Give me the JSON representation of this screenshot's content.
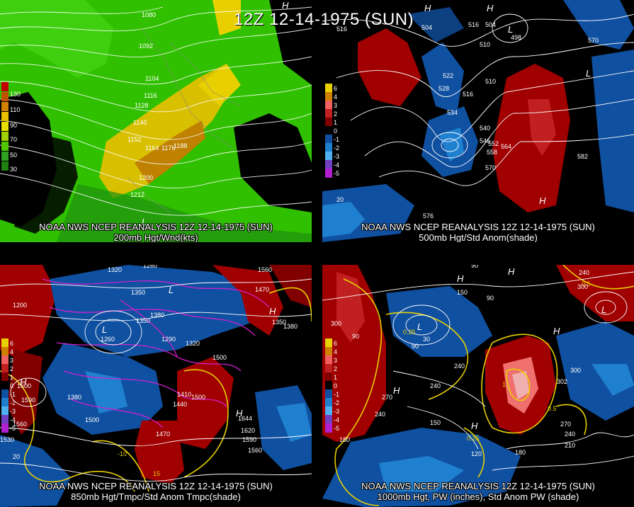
{
  "title": "12Z 12-14-1975 (SUN)",
  "panels": [
    {
      "caption1": "NOAA NWS NCEP REANALYSIS 12Z 12-14-1975 (SUN)",
      "caption2": "200mb Hgt/Wnd(kts)",
      "legend": [
        "130",
        "110",
        "90",
        "70",
        "50",
        "30"
      ],
      "legend_colors": [
        "#c00000",
        "#d08000",
        "#e8d000",
        "#50c800",
        "#30a020",
        "#208010"
      ],
      "contour_labels": [
        "1080",
        "1092",
        "1104",
        "1116",
        "1128",
        "1140",
        "1152",
        "1164",
        "1176",
        "1188",
        "1200",
        "1212"
      ],
      "highs_lows": [
        "H",
        "L"
      ]
    },
    {
      "caption1": "NOAA NWS NCEP REANALYSIS 12Z 12-14-1975 (SUN)",
      "caption2": "500mb Hgt/Std Anom(shade)",
      "legend": [
        "6",
        "4",
        "3",
        "2",
        "1",
        "0",
        "-1",
        "-2",
        "-3",
        "-4",
        "-5"
      ],
      "legend_colors": [
        "#e8d000",
        "#d08000",
        "#f06060",
        "#c02020",
        "#800000",
        "#000000",
        "#1050a0",
        "#2080d0",
        "#50b0f0",
        "#7040c0",
        "#b020d0"
      ],
      "contour_labels": [
        "516",
        "504",
        "516",
        "504",
        "498",
        "510",
        "522",
        "528",
        "516",
        "534",
        "510",
        "540",
        "546",
        "552",
        "558",
        "564",
        "570",
        "582",
        "570",
        "576",
        "20"
      ],
      "highs_lows": [
        "H",
        "H",
        "L",
        "L",
        "H"
      ]
    },
    {
      "caption1": "NOAA NWS NCEP REANALYSIS 12Z 12-14-1975 (SUN)",
      "caption2": "850mb Hgt/Tmpc/Std Anom Tmpc(shade)",
      "legend": [
        "6",
        "4",
        "3",
        "2",
        "1",
        "0",
        "-1",
        "-2",
        "-3",
        "-4",
        "-5"
      ],
      "legend_colors": [
        "#e8d000",
        "#d08000",
        "#f06060",
        "#c02020",
        "#800000",
        "#000000",
        "#1050a0",
        "#2080d0",
        "#50b0f0",
        "#7040c0",
        "#b020d0"
      ],
      "contour_labels": [
        "1320",
        "1260",
        "1350",
        "1380",
        "1260",
        "1320",
        "1290",
        "1350",
        "1380",
        "1320",
        "1500",
        "1410",
        "1440",
        "1470",
        "1500",
        "1530",
        "1560",
        "1590",
        "1620",
        "1560",
        "1590",
        "1560",
        "1470",
        "1380",
        "1350",
        "1560",
        "1530",
        "20",
        "-10",
        "15",
        "1200",
        "1600",
        "1644"
      ],
      "highs_lows": [
        "H",
        "L",
        "L",
        "H",
        "H"
      ]
    },
    {
      "caption1": "NOAA NWS NCEP REANALYSIS 12Z 12-14-1975 (SUN)",
      "caption2": "1000mb Hgt, PW (inches), Std Anom PW (shade)",
      "legend": [
        "6",
        "4",
        "3",
        "2",
        "1",
        "0",
        "-1",
        "-2",
        "-3",
        "-4",
        "-5"
      ],
      "legend_colors": [
        "#e8d000",
        "#d08000",
        "#f06060",
        "#c02020",
        "#800000",
        "#000000",
        "#1050a0",
        "#2080d0",
        "#50b0f0",
        "#7040c0",
        "#b020d0"
      ],
      "contour_labels": [
        "90",
        "150",
        "90",
        "240",
        "300",
        "90",
        "0.25",
        "90",
        "30",
        "270",
        "240",
        "150",
        "120",
        "240",
        "270",
        "240",
        "210",
        "180",
        "300",
        "302",
        "0.5",
        "1",
        "0.5",
        "0.25",
        "180",
        "240",
        "300"
      ],
      "highs_lows": [
        "H",
        "H",
        "L",
        "H",
        "H",
        "L",
        "H"
      ]
    }
  ]
}
